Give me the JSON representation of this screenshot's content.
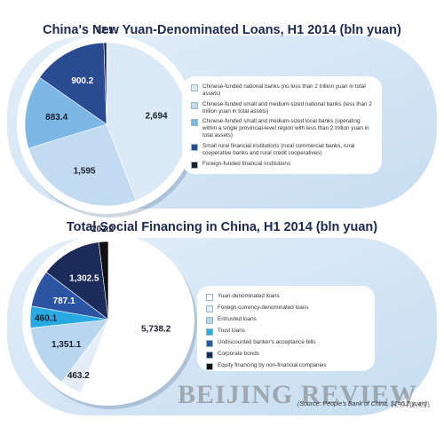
{
  "chart_data": [
    {
      "type": "pie",
      "title": "China's New Yuan-Denominated Loans, H1 2014 (bln yuan)",
      "categories": [
        "Chinese-funded national banks (no less than 2 trillion yuan in total assets)",
        "Chinese-funded small and medium-sized national banks (less than 2 trillion yuan in total assets)",
        "Chinese-funded small and medium-sized local banks (operating within a single provincial-level region with less than 2 trillion yuan in total assets)",
        "Small rural financial institutions (rural commercial banks, rural cooperative banks and rural credit cooperatives)",
        "Foreign-funded financial institutions"
      ],
      "values": [
        2694,
        1595,
        883.4,
        900.2,
        32.1
      ],
      "value_labels": [
        "2,694",
        "1,595",
        "883.4",
        "900.2",
        "32.1"
      ],
      "colors": [
        "#dce9f6",
        "#c3dbf1",
        "#7db7e6",
        "#2a4a92",
        "#1b1f2e"
      ]
    },
    {
      "type": "pie",
      "title": "Total Social Financing in China, H1 2014 (bln yuan)",
      "categories": [
        "Yuan-denominated loans",
        "Foreign currency-denominated loans",
        "Entrusted loans",
        "Trust loans",
        "Undiscounted banker's acceptance bills",
        "Corporate bonds",
        "Equity financing by non-financial companies"
      ],
      "values": [
        5738.2,
        463.2,
        1351.1,
        460.1,
        787.1,
        1302.5,
        202.2
      ],
      "value_labels": [
        "5,738.2",
        "463.2",
        "1,351.1",
        "460.1",
        "787.1",
        "1,302.5",
        "202.2"
      ],
      "colors": [
        "#ffffff",
        "#e5eef8",
        "#b9d6ef",
        "#27a9e1",
        "#2b55a3",
        "#1c2c5a",
        "#111111"
      ]
    }
  ],
  "source": "(Source: People's Bank of China, $1=6.2 yuan)",
  "watermark": {
    "name": "BEIJING REVIEW",
    "domain": ".com.cn"
  }
}
